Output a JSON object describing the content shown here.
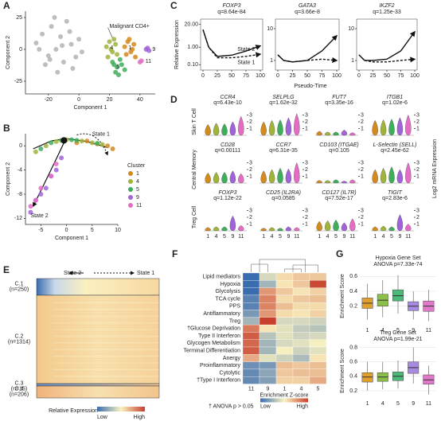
{
  "chart_data": [
    {
      "type": "scatter",
      "letter": "A",
      "xlabel": "Component 1",
      "ylabel": "Component 2",
      "xlim": [
        -35,
        50
      ],
      "xticks": [
        -20,
        0,
        20,
        40
      ],
      "ylim": [
        -35,
        30
      ],
      "yticks": [
        -25,
        0,
        25
      ],
      "annotation": "Malignant CD4+",
      "series": [
        {
          "color": "#b3b3b3",
          "x": [
            -28,
            -24,
            -20,
            -18,
            -15,
            -12,
            -10,
            -8,
            -5,
            -2,
            0,
            2,
            -22,
            -14,
            -6,
            -26,
            -16,
            -4,
            -11,
            -19
          ],
          "values": [
            5,
            12,
            -5,
            18,
            0,
            10,
            -10,
            22,
            4,
            -6,
            8,
            -2,
            -12,
            -18,
            14,
            0,
            25,
            -15,
            3,
            -8
          ]
        },
        {
          "name": "4",
          "color": "#a0b43a",
          "x": [
            18,
            20,
            22,
            24,
            19,
            23,
            21,
            25
          ],
          "values": [
            2,
            6,
            -2,
            4,
            -6,
            8,
            0,
            -4
          ]
        },
        {
          "name": "1",
          "color": "#d38a1e",
          "x": [
            30,
            32,
            34,
            36,
            31,
            35,
            33,
            37
          ],
          "values": [
            2,
            6,
            -2,
            4,
            -4,
            0,
            8,
            -6
          ]
        },
        {
          "name": "5",
          "color": "#3fae5c",
          "x": [
            22,
            25,
            28,
            24,
            27,
            30,
            26,
            23
          ],
          "values": [
            -10,
            -14,
            -12,
            -18,
            -8,
            -16,
            -20,
            -12
          ]
        },
        {
          "name": "9",
          "color": "#a064d8",
          "x": [
            44,
            45,
            46
          ],
          "values": [
            0,
            1,
            -1
          ]
        },
        {
          "name": "11",
          "color": "#e46cc4",
          "x": [
            40,
            41
          ],
          "values": [
            -10,
            -9
          ]
        }
      ]
    },
    {
      "type": "scatter",
      "letter": "B",
      "xlabel": "Component 1",
      "ylabel": "Component 2",
      "xlim": [
        -8,
        10
      ],
      "xticks": [
        -5,
        0,
        5,
        10
      ],
      "ylim": [
        -13,
        2
      ],
      "yticks": [
        -12,
        -8,
        -4,
        0
      ],
      "legend": "right",
      "legend_title": "Cluster",
      "state_labels": [
        "State 1",
        "State 2"
      ],
      "branch_point": "1",
      "series": [
        {
          "name": "1",
          "color": "#d38a1e",
          "x": [
            2,
            4,
            6,
            8,
            9
          ],
          "values": [
            0.5,
            0.8,
            0.3,
            0,
            -0.5
          ]
        },
        {
          "name": "4",
          "color": "#a0b43a",
          "x": [
            -6,
            -4,
            -2,
            0,
            3,
            5,
            7
          ],
          "values": [
            -1,
            0,
            0.7,
            1,
            0.8,
            0.5,
            0.2
          ]
        },
        {
          "name": "5",
          "color": "#3fae5c",
          "x": [
            -5,
            -3,
            -1,
            1,
            2,
            6
          ],
          "values": [
            -0.5,
            0.5,
            0.9,
            1,
            0.9,
            0.4
          ]
        },
        {
          "name": "9",
          "color": "#a064d8",
          "x": [
            -1,
            -2,
            -3,
            -4,
            -5,
            -6,
            -7
          ],
          "values": [
            -2,
            -4,
            -5,
            -7,
            -8,
            -9,
            -11
          ]
        },
        {
          "name": "11",
          "color": "#e46cc4",
          "x": [
            -2,
            -3,
            -5,
            -6,
            -7
          ],
          "values": [
            -3,
            -5,
            -7,
            -9,
            -10
          ]
        }
      ]
    },
    {
      "type": "line",
      "letter": "C",
      "xlabel": "Pseudo-Time",
      "ylabel": "Relative Expression",
      "log_y": true,
      "x": [
        0,
        10,
        25,
        50,
        75,
        100
      ],
      "xlim": [
        0,
        100
      ],
      "xticks": [
        0,
        25,
        50,
        75,
        100
      ],
      "panels": [
        {
          "title": "FOXP3",
          "subtitle": "q=8.64e-84",
          "ylim": [
            0.05,
            40
          ],
          "yticks": [
            {
              "value": 0.1,
              "label": "0.10"
            },
            {
              "value": 1,
              "label": "1.00"
            },
            {
              "value": 20,
              "label": "20.00"
            }
          ],
          "series": [
            {
              "name": "State 2",
              "color": "#111",
              "values": [
                10,
                1,
                0.3,
                0.35,
                0.6,
                1.2
              ]
            },
            {
              "name": "State 1",
              "color": "#111",
              "dash": true,
              "values": [
                10,
                1,
                0.25,
                0.25,
                0.3,
                0.4
              ]
            }
          ]
        },
        {
          "title": "GATA3",
          "subtitle": "q=3.66e-8",
          "ylim": [
            0.5,
            20
          ],
          "yticks": [
            1,
            10
          ],
          "series": [
            {
              "color": "#111",
              "values": [
                1.5,
                1,
                0.9,
                1,
                2,
                6
              ]
            },
            {
              "color": "#111",
              "dash": true,
              "values": [
                1.5,
                1,
                0.9,
                1,
                1.1,
                1
              ]
            }
          ]
        },
        {
          "title": "IKZF2",
          "subtitle": "q=1.25e-33",
          "ylim": [
            0.5,
            20
          ],
          "yticks": [
            1,
            10
          ],
          "series": [
            {
              "color": "#111",
              "values": [
                1.5,
                1,
                1,
                1.1,
                2,
                8
              ]
            },
            {
              "color": "#111",
              "dash": true,
              "values": [
                1.5,
                1,
                0.9,
                0.9,
                1,
                1.1
              ]
            }
          ]
        }
      ]
    },
    {
      "type": "violin",
      "letter": "D",
      "ylabel": "Log2 mRNA Expression",
      "ylim": [
        0,
        4
      ],
      "categories": [
        "1",
        "4",
        "5",
        "9",
        "11"
      ],
      "colors": [
        "#d38a1e",
        "#a0b43a",
        "#3fae5c",
        "#a064d8",
        "#e46cc4"
      ],
      "rows": [
        {
          "label": "Skin T Cell",
          "genes": [
            {
              "name": "CCR4",
              "subtitle": "q=6.43e-10",
              "yticks": [
                1,
                2,
                3
              ],
              "values": [
                1.6,
                1.8,
                1.7,
                2.0,
                2.8
              ]
            },
            {
              "name": "SELPLG",
              "subtitle": "q=1.62e-32",
              "yticks": [
                1,
                2,
                3
              ],
              "values": [
                2.0,
                2.2,
                2.3,
                2.6,
                3.2
              ]
            },
            {
              "name": "FUT7",
              "subtitle": "q=3.35e-16",
              "yticks": [
                1,
                2,
                3
              ],
              "values": [
                0.6,
                0.5,
                0.5,
                0.8,
                0.4
              ]
            },
            {
              "name": "ITGB1",
              "subtitle": "q=1.02e-6",
              "yticks": [
                1,
                2,
                3
              ],
              "values": [
                2.2,
                2.3,
                2.4,
                2.6,
                3.0
              ]
            }
          ]
        },
        {
          "label": "Central Memory",
          "genes": [
            {
              "name": "CD28",
              "subtitle": "q=0.00111",
              "yticks": [
                1,
                2,
                3
              ],
              "values": [
                1.5,
                1.6,
                1.6,
                1.8,
                1.4
              ]
            },
            {
              "name": "CCR7",
              "subtitle": "q=6.31e-35",
              "yticks": [
                1,
                2,
                3
              ],
              "values": [
                1.8,
                2.0,
                2.2,
                2.1,
                3.0
              ]
            },
            {
              "name": "CD103 (ITGAE)",
              "subtitle": "q=0.105",
              "yticks": [
                1,
                2,
                3
              ],
              "values": [
                0.4,
                0.4,
                0.5,
                0.3,
                0.5
              ]
            },
            {
              "name": "L-Selectin (SELL)",
              "subtitle": "q=2.45e-62",
              "yticks": [
                1,
                2,
                3
              ],
              "values": [
                2.0,
                2.2,
                2.4,
                2.0,
                3.0
              ]
            }
          ]
        },
        {
          "label": "Treg Cell",
          "genes": [
            {
              "name": "FOXP3",
              "subtitle": "q=1.12e-22",
              "yticks": [
                1,
                2,
                3
              ],
              "values": [
                0.5,
                0.6,
                0.6,
                2.2,
                0.8
              ]
            },
            {
              "name": "CD25 (IL2RA)",
              "subtitle": "q=0.0585",
              "yticks": [
                1,
                2,
                3
              ],
              "values": [
                0.4,
                0.5,
                0.4,
                0.6,
                0.5
              ]
            },
            {
              "name": "CD127 (IL7R)",
              "subtitle": "q=7.52e-17",
              "yticks": [
                1,
                2,
                3
              ],
              "values": [
                1.4,
                1.5,
                1.6,
                1.2,
                1.8
              ]
            },
            {
              "name": "TIGIT",
              "subtitle": "q=2.83e-6",
              "yticks": [
                1,
                2,
                3
              ],
              "values": [
                0.6,
                0.7,
                0.6,
                2.4,
                1.0
              ]
            }
          ]
        }
      ]
    },
    {
      "type": "heatmap",
      "letter": "E",
      "state_labels": [
        "State 2",
        "State 1"
      ],
      "row_groups": [
        {
          "label": "C.1",
          "n": "(n=250)"
        },
        {
          "label": "C.2",
          "n": "(n=1314)"
        },
        {
          "label": "C.3",
          "n": "(n=15)"
        },
        {
          "label": "C.4",
          "n": "(n=206)"
        }
      ],
      "legend_title": "Relative Expression",
      "legend_low": "Low",
      "legend_high": "High"
    },
    {
      "type": "heatmap",
      "letter": "F",
      "columns": [
        "11",
        "9",
        "1",
        "4",
        "5"
      ],
      "rows": [
        "Lipid mediators",
        "Hypoxia",
        "Glycolysis",
        "TCA cycle",
        "PPS",
        "Antiflammatory",
        "Treg",
        "†Glucose Deprivation",
        "Type II Interferon",
        "Glycogen Metabolism",
        "Terminal Differentiation",
        "Anergy",
        "Proinflammatory",
        "Cytolytic",
        "†Type I Interferon"
      ],
      "values": [
        [
          -1.8,
          -0.3,
          0.3,
          0.5,
          0.5
        ],
        [
          -1.8,
          -0.8,
          0.2,
          0.5,
          1.8
        ],
        [
          -1.8,
          1.0,
          0.5,
          0.2,
          0.4
        ],
        [
          -1.5,
          1.2,
          0.3,
          0.5,
          0.6
        ],
        [
          -1.5,
          1.2,
          0.6,
          0.3,
          0.3
        ],
        [
          -1.2,
          1.0,
          0.3,
          0.2,
          0.4
        ],
        [
          -0.8,
          1.9,
          -0.3,
          -0.3,
          -0.4
        ],
        [
          1.3,
          0.2,
          -0.2,
          -0.5,
          -0.6
        ],
        [
          1.6,
          -0.6,
          -0.2,
          -0.4,
          -0.3
        ],
        [
          1.5,
          -0.8,
          -0.3,
          -0.2,
          0
        ],
        [
          1.6,
          -0.8,
          0,
          -0.4,
          -0.2
        ],
        [
          0.8,
          -0.2,
          -0.4,
          -0.7,
          0.2
        ],
        [
          -1.3,
          -1.2,
          0.6,
          0.5,
          0.6
        ],
        [
          -1.4,
          -1.0,
          0.5,
          0.6,
          0.6
        ],
        [
          -1.4,
          -1.1,
          0.4,
          0.4,
          0.8
        ]
      ],
      "legend_title": "Enrichment Z-score",
      "legend_low": "Low",
      "legend_high": "High",
      "note": "† ANOVA p > 0.05"
    },
    {
      "type": "box",
      "letter": "G",
      "ylabel": "Enrichment Score",
      "categories": [
        "1",
        "4",
        "5",
        "9",
        "11"
      ],
      "colors": [
        "#e0a030",
        "#8cbf4a",
        "#4cb87a",
        "#a78be0",
        "#e07ac8"
      ],
      "panels": [
        {
          "title": "Hypoxia Gene Set",
          "subtitle": "ANOVA p=7.33e-74",
          "ylim": [
            -0.05,
            0.7
          ],
          "yticks": [
            0.2,
            0.4,
            0.6
          ],
          "whislo": [
            0.02,
            0.05,
            0.1,
            0.02,
            0.0
          ],
          "q1": [
            0.17,
            0.2,
            0.27,
            0.14,
            0.13
          ],
          "median": [
            0.24,
            0.28,
            0.34,
            0.2,
            0.2
          ],
          "q3": [
            0.31,
            0.36,
            0.42,
            0.26,
            0.27
          ],
          "whishi": [
            0.5,
            0.55,
            0.62,
            0.4,
            0.42
          ]
        },
        {
          "title": "Treg Gene Set",
          "subtitle": "ANOVA p=1.99e-21",
          "ylim": [
            0.1,
            0.85
          ],
          "yticks": [
            0.2,
            0.4,
            0.6,
            0.8
          ],
          "whislo": [
            0.2,
            0.22,
            0.23,
            0.3,
            0.15
          ],
          "q1": [
            0.32,
            0.33,
            0.34,
            0.44,
            0.29
          ],
          "median": [
            0.39,
            0.39,
            0.4,
            0.52,
            0.35
          ],
          "q3": [
            0.45,
            0.45,
            0.46,
            0.6,
            0.42
          ],
          "whishi": [
            0.6,
            0.6,
            0.62,
            0.8,
            0.55
          ]
        }
      ]
    }
  ]
}
